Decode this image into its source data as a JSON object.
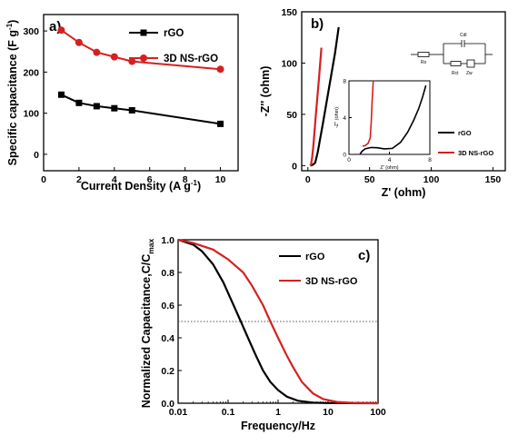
{
  "chart_data": [
    {
      "panel": "a)",
      "type": "line",
      "xlabel": "Current Density (A g",
      "xlabel_sup": "-1",
      "xlabel_end": ")",
      "ylabel": "Specific capacitance (F g",
      "ylabel_sup": "-1",
      "ylabel_end": ")",
      "xlim": [
        0,
        11
      ],
      "ylim": [
        -40,
        340
      ],
      "xticks": [
        "0",
        "2",
        "4",
        "6",
        "8",
        "10"
      ],
      "xtick_values": [
        0,
        2,
        4,
        6,
        8,
        10
      ],
      "yticks": [
        "0",
        "100",
        "200",
        "300"
      ],
      "ytick_values": [
        0,
        100,
        200,
        300
      ],
      "legend_position": "top-right",
      "series": [
        {
          "name": "rGO",
          "color": "#000000",
          "marker": "square",
          "x": [
            1,
            2,
            3,
            4,
            5,
            10
          ],
          "values": [
            145,
            125,
            117,
            112,
            107,
            74
          ]
        },
        {
          "name": "3D NS-rGO",
          "color": "#d62020",
          "marker": "circle",
          "x": [
            1,
            2,
            3,
            4,
            5,
            10
          ],
          "values": [
            302,
            272,
            248,
            237,
            226,
            207
          ]
        }
      ]
    },
    {
      "panel": "b)",
      "type": "line",
      "xlabel": "Z' (ohm)",
      "ylabel": "-Z'' (ohm)",
      "xlim": [
        -5,
        160
      ],
      "ylim": [
        -5,
        150
      ],
      "xticks": [
        "0",
        "50",
        "100",
        "150"
      ],
      "xtick_values": [
        0,
        50,
        100,
        150
      ],
      "yticks": [
        "0",
        "50",
        "100",
        "150"
      ],
      "ytick_values": [
        0,
        50,
        100,
        150
      ],
      "legend_position": "bottom-right",
      "series": [
        {
          "name": "rGO",
          "color": "#000000",
          "x": [
            2,
            3.2,
            4.5,
            6,
            8,
            12,
            17,
            22,
            25
          ],
          "values": [
            0,
            0.5,
            1.2,
            3,
            13,
            40,
            75,
            110,
            135
          ]
        },
        {
          "name": "3D NS-rGO",
          "color": "#d62020",
          "x": [
            1.8,
            2.6,
            3.5,
            4.5,
            6.5,
            9,
            11
          ],
          "values": [
            0,
            1.2,
            8,
            20,
            50,
            85,
            115
          ]
        }
      ],
      "inset": {
        "xlabel": "Z' (ohm)",
        "ylabel": "-Z'' (ohm)",
        "xlim": [
          0,
          8
        ],
        "ylim": [
          0,
          8
        ],
        "xticks": [
          "0",
          "4",
          "8"
        ],
        "xtick_values": [
          0,
          4,
          8
        ],
        "yticks": [
          "0",
          "4",
          "8"
        ],
        "ytick_values": [
          0,
          4,
          8
        ],
        "series": [
          {
            "name": "rGO",
            "color": "#000000",
            "x": [
              1.1,
              1.3,
              1.6,
              2.2,
              2.8,
              3.5,
              4.3,
              5.1,
              5.8,
              6.4,
              6.9,
              7.3,
              7.6
            ],
            "values": [
              0.05,
              0.35,
              0.6,
              0.75,
              0.72,
              0.6,
              0.65,
              1.3,
              2.4,
              3.7,
              5.0,
              6.3,
              7.5
            ]
          },
          {
            "name": "3D NS-rGO",
            "color": "#d62020",
            "x": [
              1.35,
              1.6,
              1.9,
              2.1,
              2.2,
              2.3,
              2.4
            ],
            "values": [
              0.9,
              0.95,
              1.2,
              1.8,
              3.5,
              6.0,
              8.0
            ]
          }
        ]
      },
      "circuit_labels": [
        "Rs",
        "Cdl",
        "Rct",
        "Zw"
      ]
    },
    {
      "panel": "c)",
      "type": "line",
      "xscale": "log",
      "xlabel": "Frequency/Hz",
      "ylabel": "Normalized Capacitance,C/C",
      "ylabel_sub": "max",
      "xlim": [
        0.01,
        100
      ],
      "ylim": [
        0,
        1.0
      ],
      "xticks": [
        "0.01",
        "0.1",
        "1",
        "10",
        "100"
      ],
      "xtick_values": [
        0.01,
        0.1,
        1,
        10,
        100
      ],
      "yticks": [
        "0.0",
        "0.2",
        "0.4",
        "0.6",
        "0.8",
        "1.0"
      ],
      "ytick_values": [
        0,
        0.2,
        0.4,
        0.6,
        0.8,
        1.0
      ],
      "reference_line": 0.5,
      "legend_position": "top-right",
      "series": [
        {
          "name": "rGO",
          "color": "#000000",
          "x": [
            0.01,
            0.02,
            0.03,
            0.05,
            0.08,
            0.12,
            0.18,
            0.25,
            0.35,
            0.5,
            0.7,
            1.0,
            1.5,
            2.5,
            5,
            10,
            100
          ],
          "values": [
            1.0,
            0.97,
            0.93,
            0.85,
            0.74,
            0.62,
            0.5,
            0.4,
            0.3,
            0.2,
            0.13,
            0.08,
            0.04,
            0.015,
            0.004,
            0.001,
            0.0
          ]
        },
        {
          "name": "3D NS-rGO",
          "color": "#d62020",
          "x": [
            0.01,
            0.02,
            0.05,
            0.1,
            0.2,
            0.3,
            0.5,
            0.7,
            1.0,
            1.5,
            2.0,
            3.0,
            5.0,
            8.0,
            15,
            30,
            100
          ],
          "values": [
            1.0,
            0.98,
            0.94,
            0.88,
            0.8,
            0.72,
            0.6,
            0.5,
            0.4,
            0.29,
            0.22,
            0.13,
            0.06,
            0.025,
            0.008,
            0.002,
            0.0
          ]
        }
      ]
    }
  ]
}
